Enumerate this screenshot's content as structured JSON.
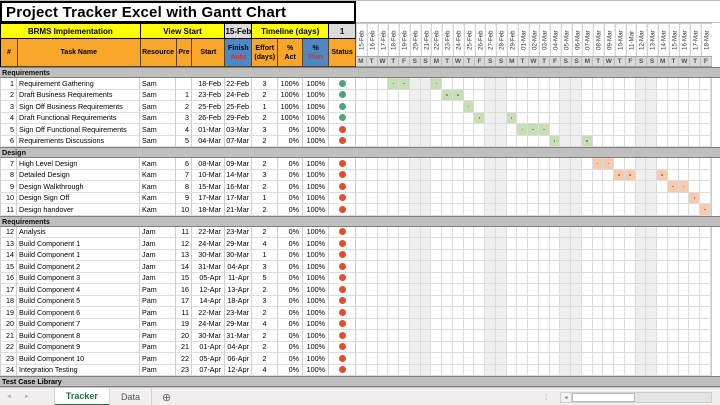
{
  "title": "Project Tracker Excel with Gantt Chart",
  "toolbar_row": {
    "project": "BRMS Implementation",
    "view_start_label": "View Start",
    "view_start_value": "15-Feb",
    "timeline_label": "Timeline (days)",
    "timeline_value": "1"
  },
  "columns": {
    "num": "#",
    "task": "Task Name",
    "resource": "Resource",
    "pre": "Pre",
    "start": "Start",
    "finish_top": "Finish",
    "finish_bottom": "Auto",
    "effort_top": "Effort",
    "effort_bottom": "(days)",
    "act_top": "%",
    "act_bottom": "Act",
    "plan_top": "%",
    "plan_bottom": "Plan",
    "status": "Status"
  },
  "colors": {
    "header_yellow": "#FFFF00",
    "header_orange": "#F9A72B",
    "header_blue": "#4F86C4",
    "red_text": "#D93025",
    "tab_green": "#1E7145",
    "status": {
      "green": "#4FA37E",
      "red": "#E04E2B"
    },
    "bars": {
      "green": "#C6E0B4",
      "orange": "#F8CBAD"
    }
  },
  "timeline": {
    "dates": [
      "15-Feb",
      "16-Feb",
      "17-Feb",
      "18-Feb",
      "19-Feb",
      "20-Feb",
      "21-Feb",
      "22-Feb",
      "23-Feb",
      "24-Feb",
      "25-Feb",
      "26-Feb",
      "27-Feb",
      "28-Feb",
      "29-Feb",
      "01-Mar",
      "02-Mar",
      "03-Mar",
      "04-Mar",
      "05-Mar",
      "06-Mar",
      "07-Mar",
      "08-Mar",
      "09-Mar",
      "10-Mar",
      "11-Mar",
      "12-Mar",
      "13-Mar",
      "14-Mar",
      "15-Mar",
      "16-Mar",
      "17-Mar",
      "18-Mar"
    ],
    "dow": [
      "M",
      "T",
      "W",
      "T",
      "F",
      "S",
      "S",
      "M",
      "T",
      "W",
      "T",
      "F",
      "S",
      "S",
      "M",
      "T",
      "W",
      "T",
      "F",
      "S",
      "S",
      "M",
      "T",
      "W",
      "T",
      "F",
      "S",
      "S",
      "M",
      "T",
      "W",
      "T",
      "F"
    ]
  },
  "rows": [
    {
      "type": "section",
      "label": "Requirements"
    },
    {
      "type": "task",
      "num": "1",
      "name": "Requirement Gathering",
      "resource": "Sam",
      "pre": "",
      "start": "18-Feb",
      "finish": "22-Feb",
      "effort": "3",
      "act": "100%",
      "plan": "100%",
      "status": "green",
      "bar_color": "green",
      "gantt_days": [
        3,
        4,
        7
      ]
    },
    {
      "type": "task",
      "num": "2",
      "name": "Draft Business Requirements",
      "resource": "Sam",
      "pre": "1",
      "start": "23-Feb",
      "finish": "24-Feb",
      "effort": "2",
      "act": "100%",
      "plan": "100%",
      "status": "green",
      "bar_color": "green",
      "gantt_days": [
        8,
        9
      ]
    },
    {
      "type": "task",
      "num": "3",
      "name": "Sign Off Business Requirements",
      "resource": "Sam",
      "pre": "2",
      "start": "25-Feb",
      "finish": "25-Feb",
      "effort": "1",
      "act": "100%",
      "plan": "100%",
      "status": "green",
      "bar_color": "green",
      "gantt_days": [
        10
      ]
    },
    {
      "type": "task",
      "num": "4",
      "name": "Draft Functional Requirements",
      "resource": "Sam",
      "pre": "3",
      "start": "26-Feb",
      "finish": "29-Feb",
      "effort": "2",
      "act": "100%",
      "plan": "100%",
      "status": "green",
      "bar_color": "green",
      "gantt_days": [
        11,
        14
      ]
    },
    {
      "type": "task",
      "num": "5",
      "name": "Sign Off Functional Requirements",
      "resource": "Sam",
      "pre": "4",
      "start": "01-Mar",
      "finish": "03-Mar",
      "effort": "3",
      "act": "0%",
      "plan": "100%",
      "status": "red",
      "bar_color": "green",
      "gantt_days": [
        15,
        16,
        17
      ]
    },
    {
      "type": "task",
      "num": "6",
      "name": "Requirements Discussions",
      "resource": "Sam",
      "pre": "5",
      "start": "04-Mar",
      "finish": "07-Mar",
      "effort": "2",
      "act": "0%",
      "plan": "100%",
      "status": "red",
      "bar_color": "green",
      "gantt_days": [
        18,
        21
      ]
    },
    {
      "type": "section",
      "label": "Design"
    },
    {
      "type": "task",
      "num": "7",
      "name": "High Level Design",
      "resource": "Kam",
      "pre": "6",
      "start": "08-Mar",
      "finish": "09-Mar",
      "effort": "2",
      "act": "0%",
      "plan": "100%",
      "status": "red",
      "bar_color": "orange",
      "gantt_days": [
        22,
        23
      ]
    },
    {
      "type": "task",
      "num": "8",
      "name": "Detailed Design",
      "resource": "Kam",
      "pre": "7",
      "start": "10-Mar",
      "finish": "14-Mar",
      "effort": "3",
      "act": "0%",
      "plan": "100%",
      "status": "red",
      "bar_color": "orange",
      "gantt_days": [
        24,
        25,
        28
      ]
    },
    {
      "type": "task",
      "num": "9",
      "name": "Design Walkthrough",
      "resource": "Kam",
      "pre": "8",
      "start": "15-Mar",
      "finish": "16-Mar",
      "effort": "2",
      "act": "0%",
      "plan": "100%",
      "status": "red",
      "bar_color": "orange",
      "gantt_days": [
        29,
        30
      ]
    },
    {
      "type": "task",
      "num": "10",
      "name": "Design Sign Off",
      "resource": "Kam",
      "pre": "9",
      "start": "17-Mar",
      "finish": "17-Mar",
      "effort": "1",
      "act": "0%",
      "plan": "100%",
      "status": "red",
      "bar_color": "orange",
      "gantt_days": [
        31
      ]
    },
    {
      "type": "task",
      "num": "11",
      "name": "Design handover",
      "resource": "Kam",
      "pre": "10",
      "start": "18-Mar",
      "finish": "21-Mar",
      "effort": "2",
      "act": "0%",
      "plan": "100%",
      "status": "red",
      "bar_color": "orange",
      "gantt_days": [
        32
      ]
    },
    {
      "type": "section",
      "label": "Requirements"
    },
    {
      "type": "task",
      "num": "12",
      "name": "Analysis",
      "resource": "Jam",
      "pre": "11",
      "start": "22-Mar",
      "finish": "23-Mar",
      "effort": "2",
      "act": "0%",
      "plan": "100%",
      "status": "red",
      "bar_color": "",
      "gantt_days": []
    },
    {
      "type": "task",
      "num": "13",
      "name": "Build Component 1",
      "resource": "Jam",
      "pre": "12",
      "start": "24-Mar",
      "finish": "29-Mar",
      "effort": "4",
      "act": "0%",
      "plan": "100%",
      "status": "red",
      "bar_color": "",
      "gantt_days": []
    },
    {
      "type": "task",
      "num": "14",
      "name": "Build Component 1",
      "resource": "Jam",
      "pre": "13",
      "start": "30-Mar",
      "finish": "30-Mar",
      "effort": "1",
      "act": "0%",
      "plan": "100%",
      "status": "red",
      "bar_color": "",
      "gantt_days": []
    },
    {
      "type": "task",
      "num": "15",
      "name": "Build Component 2",
      "resource": "Jam",
      "pre": "14",
      "start": "31-Mar",
      "finish": "04-Apr",
      "effort": "3",
      "act": "0%",
      "plan": "100%",
      "status": "red",
      "bar_color": "",
      "gantt_days": []
    },
    {
      "type": "task",
      "num": "16",
      "name": "Build Component 3",
      "resource": "Jam",
      "pre": "15",
      "start": "05-Apr",
      "finish": "11-Apr",
      "effort": "5",
      "act": "0%",
      "plan": "100%",
      "status": "red",
      "bar_color": "",
      "gantt_days": []
    },
    {
      "type": "task",
      "num": "17",
      "name": "Build Component 4",
      "resource": "Pam",
      "pre": "16",
      "start": "12-Apr",
      "finish": "13-Apr",
      "effort": "2",
      "act": "0%",
      "plan": "100%",
      "status": "red",
      "bar_color": "",
      "gantt_days": []
    },
    {
      "type": "task",
      "num": "18",
      "name": "Build Component 5",
      "resource": "Pam",
      "pre": "17",
      "start": "14-Apr",
      "finish": "18-Apr",
      "effort": "3",
      "act": "0%",
      "plan": "100%",
      "status": "red",
      "bar_color": "",
      "gantt_days": []
    },
    {
      "type": "task",
      "num": "19",
      "name": "Build Component 6",
      "resource": "Pam",
      "pre": "11",
      "start": "22-Mar",
      "finish": "23-Mar",
      "effort": "2",
      "act": "0%",
      "plan": "100%",
      "status": "red",
      "bar_color": "",
      "gantt_days": []
    },
    {
      "type": "task",
      "num": "20",
      "name": "Build Component 7",
      "resource": "Pam",
      "pre": "19",
      "start": "24-Mar",
      "finish": "29-Mar",
      "effort": "4",
      "act": "0%",
      "plan": "100%",
      "status": "red",
      "bar_color": "",
      "gantt_days": []
    },
    {
      "type": "task",
      "num": "21",
      "name": "Build Component 8",
      "resource": "Pam",
      "pre": "20",
      "start": "30-Mar",
      "finish": "31-Mar",
      "effort": "2",
      "act": "0%",
      "plan": "100%",
      "status": "red",
      "bar_color": "",
      "gantt_days": []
    },
    {
      "type": "task",
      "num": "22",
      "name": "Build Component 9",
      "resource": "Pam",
      "pre": "21",
      "start": "01-Apr",
      "finish": "04-Apr",
      "effort": "2",
      "act": "0%",
      "plan": "100%",
      "status": "red",
      "bar_color": "",
      "gantt_days": []
    },
    {
      "type": "task",
      "num": "23",
      "name": "Build Component 10",
      "resource": "Pam",
      "pre": "22",
      "start": "05-Apr",
      "finish": "06-Apr",
      "effort": "2",
      "act": "0%",
      "plan": "100%",
      "status": "red",
      "bar_color": "",
      "gantt_days": []
    },
    {
      "type": "task",
      "num": "24",
      "name": "Integration Testing",
      "resource": "Pam",
      "pre": "23",
      "start": "07-Apr",
      "finish": "12-Apr",
      "effort": "4",
      "act": "0%",
      "plan": "100%",
      "status": "red",
      "bar_color": "",
      "gantt_days": []
    }
  ],
  "footer": {
    "bottom_section": "Test Case Library",
    "tabs": [
      "Tracker",
      "Data"
    ],
    "active_tab": "Tracker",
    "icons": {
      "prev": "◄",
      "next": "►",
      "add_sheet": "⊕",
      "scroll_left": "◄",
      "grip": "⁞"
    }
  }
}
